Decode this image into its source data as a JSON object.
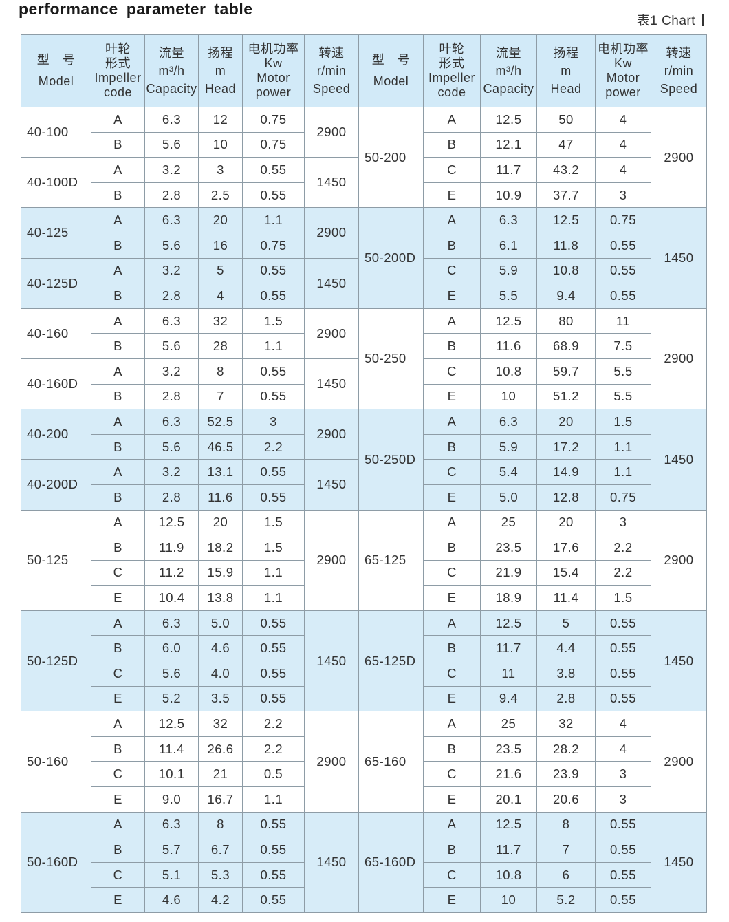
{
  "title": "performance parameter table",
  "chart_label": "表1  Chart",
  "colors": {
    "header_bg": "#d2eaf8",
    "band_bg": "#d7ecf8",
    "border": "#8e9ca6"
  },
  "headers": [
    {
      "cn": "型　号",
      "en": [
        "Model"
      ]
    },
    {
      "cn": "叶轮\n形式",
      "en": [
        "Impeller",
        "code"
      ]
    },
    {
      "cn": "流量",
      "en": [
        "m³/h",
        "Capacity"
      ]
    },
    {
      "cn": "扬程",
      "en": [
        "m",
        "Head"
      ]
    },
    {
      "cn": "电机功率",
      "en": [
        "Kw",
        "Motor",
        "power"
      ]
    },
    {
      "cn": "转速",
      "en": [
        "r/min",
        "Speed"
      ]
    }
  ],
  "left": [
    {
      "model": "40-100",
      "speed": "2900",
      "rows": [
        [
          "A",
          "6.3",
          "12",
          "0.75"
        ],
        [
          "B",
          "5.6",
          "10",
          "0.75"
        ]
      ]
    },
    {
      "model": "40-100D",
      "speed": "1450",
      "rows": [
        [
          "A",
          "3.2",
          "3",
          "0.55"
        ],
        [
          "B",
          "2.8",
          "2.5",
          "0.55"
        ]
      ]
    },
    {
      "model": "40-125",
      "speed": "2900",
      "rows": [
        [
          "A",
          "6.3",
          "20",
          "1.1"
        ],
        [
          "B",
          "5.6",
          "16",
          "0.75"
        ]
      ]
    },
    {
      "model": "40-125D",
      "speed": "1450",
      "rows": [
        [
          "A",
          "3.2",
          "5",
          "0.55"
        ],
        [
          "B",
          "2.8",
          "4",
          "0.55"
        ]
      ]
    },
    {
      "model": "40-160",
      "speed": "2900",
      "rows": [
        [
          "A",
          "6.3",
          "32",
          "1.5"
        ],
        [
          "B",
          "5.6",
          "28",
          "1.1"
        ]
      ]
    },
    {
      "model": "40-160D",
      "speed": "1450",
      "rows": [
        [
          "A",
          "3.2",
          "8",
          "0.55"
        ],
        [
          "B",
          "2.8",
          "7",
          "0.55"
        ]
      ]
    },
    {
      "model": "40-200",
      "speed": "2900",
      "rows": [
        [
          "A",
          "6.3",
          "52.5",
          "3"
        ],
        [
          "B",
          "5.6",
          "46.5",
          "2.2"
        ]
      ]
    },
    {
      "model": "40-200D",
      "speed": "1450",
      "rows": [
        [
          "A",
          "3.2",
          "13.1",
          "0.55"
        ],
        [
          "B",
          "2.8",
          "11.6",
          "0.55"
        ]
      ]
    },
    {
      "model": "50-125",
      "speed": "2900",
      "rows": [
        [
          "A",
          "12.5",
          "20",
          "1.5"
        ],
        [
          "B",
          "11.9",
          "18.2",
          "1.5"
        ],
        [
          "C",
          "11.2",
          "15.9",
          "1.1"
        ],
        [
          "E",
          "10.4",
          "13.8",
          "1.1"
        ]
      ]
    },
    {
      "model": "50-125D",
      "speed": "1450",
      "rows": [
        [
          "A",
          "6.3",
          "5.0",
          "0.55"
        ],
        [
          "B",
          "6.0",
          "4.6",
          "0.55"
        ],
        [
          "C",
          "5.6",
          "4.0",
          "0.55"
        ],
        [
          "E",
          "5.2",
          "3.5",
          "0.55"
        ]
      ]
    },
    {
      "model": "50-160",
      "speed": "2900",
      "rows": [
        [
          "A",
          "12.5",
          "32",
          "2.2"
        ],
        [
          "B",
          "11.4",
          "26.6",
          "2.2"
        ],
        [
          "C",
          "10.1",
          "21",
          "0.5"
        ],
        [
          "E",
          "9.0",
          "16.7",
          "1.1"
        ]
      ]
    },
    {
      "model": "50-160D",
      "speed": "1450",
      "rows": [
        [
          "A",
          "6.3",
          "8",
          "0.55"
        ],
        [
          "B",
          "5.7",
          "6.7",
          "0.55"
        ],
        [
          "C",
          "5.1",
          "5.3",
          "0.55"
        ],
        [
          "E",
          "4.6",
          "4.2",
          "0.55"
        ]
      ]
    }
  ],
  "right": [
    {
      "model": "50-200",
      "speed": "2900",
      "rows": [
        [
          "A",
          "12.5",
          "50",
          "4"
        ],
        [
          "B",
          "12.1",
          "47",
          "4"
        ],
        [
          "C",
          "11.7",
          "43.2",
          "4"
        ],
        [
          "E",
          "10.9",
          "37.7",
          "3"
        ]
      ]
    },
    {
      "model": "50-200D",
      "speed": "1450",
      "rows": [
        [
          "A",
          "6.3",
          "12.5",
          "0.75"
        ],
        [
          "B",
          "6.1",
          "11.8",
          "0.55"
        ],
        [
          "C",
          "5.9",
          "10.8",
          "0.55"
        ],
        [
          "E",
          "5.5",
          "9.4",
          "0.55"
        ]
      ]
    },
    {
      "model": "50-250",
      "speed": "2900",
      "rows": [
        [
          "A",
          "12.5",
          "80",
          "11"
        ],
        [
          "B",
          "11.6",
          "68.9",
          "7.5"
        ],
        [
          "C",
          "10.8",
          "59.7",
          "5.5"
        ],
        [
          "E",
          "10",
          "51.2",
          "5.5"
        ]
      ]
    },
    {
      "model": "50-250D",
      "speed": "1450",
      "rows": [
        [
          "A",
          "6.3",
          "20",
          "1.5"
        ],
        [
          "B",
          "5.9",
          "17.2",
          "1.1"
        ],
        [
          "C",
          "5.4",
          "14.9",
          "1.1"
        ],
        [
          "E",
          "5.0",
          "12.8",
          "0.75"
        ]
      ]
    },
    {
      "model": "65-125",
      "speed": "2900",
      "rows": [
        [
          "A",
          "25",
          "20",
          "3"
        ],
        [
          "B",
          "23.5",
          "17.6",
          "2.2"
        ],
        [
          "C",
          "21.9",
          "15.4",
          "2.2"
        ],
        [
          "E",
          "18.9",
          "11.4",
          "1.5"
        ]
      ]
    },
    {
      "model": "65-125D",
      "speed": "1450",
      "rows": [
        [
          "A",
          "12.5",
          "5",
          "0.55"
        ],
        [
          "B",
          "11.7",
          "4.4",
          "0.55"
        ],
        [
          "C",
          "11",
          "3.8",
          "0.55"
        ],
        [
          "E",
          "9.4",
          "2.8",
          "0.55"
        ]
      ]
    },
    {
      "model": "65-160",
      "speed": "2900",
      "rows": [
        [
          "A",
          "25",
          "32",
          "4"
        ],
        [
          "B",
          "23.5",
          "28.2",
          "4"
        ],
        [
          "C",
          "21.6",
          "23.9",
          "3"
        ],
        [
          "E",
          "20.1",
          "20.6",
          "3"
        ]
      ]
    },
    {
      "model": "65-160D",
      "speed": "1450",
      "rows": [
        [
          "A",
          "12.5",
          "8",
          "0.55"
        ],
        [
          "B",
          "11.7",
          "7",
          "0.55"
        ],
        [
          "C",
          "10.8",
          "6",
          "0.55"
        ],
        [
          "E",
          "10",
          "5.2",
          "0.55"
        ]
      ]
    }
  ]
}
